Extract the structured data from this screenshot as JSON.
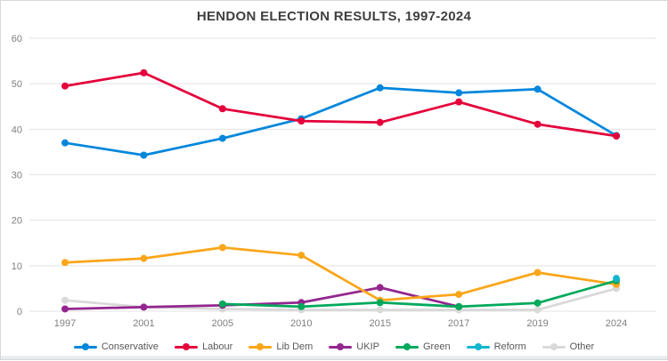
{
  "chart": {
    "title": "HENDON ELECTION RESULTS, 1997-2024"
  },
  "chart_data": {
    "type": "line",
    "title": "HENDON ELECTION RESULTS, 1997-2024",
    "categories": [
      "1997",
      "2001",
      "2005",
      "2010",
      "2015",
      "2017",
      "2019",
      "2024"
    ],
    "series": [
      {
        "name": "Conservative",
        "color": "#0087DC",
        "values": [
          37.0,
          34.3,
          38.0,
          42.3,
          49.1,
          48.0,
          48.8,
          38.6
        ]
      },
      {
        "name": "Labour",
        "color": "#E4003B",
        "values": [
          49.5,
          52.4,
          44.5,
          41.8,
          41.5,
          46.0,
          41.1,
          38.5
        ]
      },
      {
        "name": "Lib Dem",
        "color": "#FAA61A",
        "values": [
          10.7,
          11.6,
          14.0,
          12.3,
          2.4,
          3.7,
          8.5,
          5.9
        ]
      },
      {
        "name": "UKIP",
        "color": "#93278F",
        "values": [
          0.5,
          0.9,
          1.3,
          1.9,
          5.2,
          1.0,
          null,
          null
        ]
      },
      {
        "name": "Green",
        "color": "#02A95B",
        "values": [
          null,
          null,
          1.6,
          1.0,
          1.9,
          1.0,
          1.8,
          6.7
        ]
      },
      {
        "name": "Reform",
        "color": "#12B6CF",
        "values": [
          null,
          null,
          null,
          null,
          null,
          null,
          null,
          7.2
        ]
      },
      {
        "name": "Other",
        "color": "#D9D9D9",
        "values": [
          2.4,
          0.9,
          0.5,
          0.3,
          0.3,
          0.3,
          0.3,
          5.0
        ]
      }
    ],
    "ylim": [
      0,
      60
    ],
    "yticks": [
      0,
      10,
      20,
      30,
      40,
      50,
      60
    ],
    "xlabel": "",
    "ylabel": "",
    "grid": true,
    "legend_position": "bottom",
    "draw_order": [
      "Other",
      "UKIP",
      "Lib Dem",
      "Green",
      "Conservative",
      "Labour",
      "Reform"
    ],
    "axis_text_color": "#7f7f7f",
    "gridline_color": "#e3e3e3"
  }
}
